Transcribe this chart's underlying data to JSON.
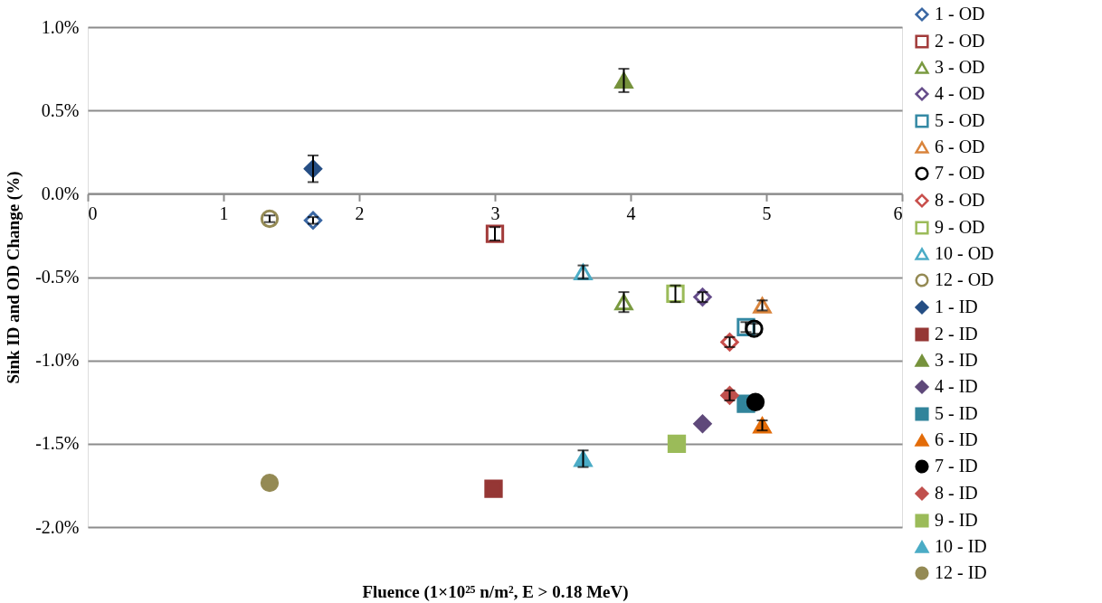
{
  "chart_data": {
    "type": "scatter",
    "xlabel": "Fluence (1×10²⁵ n/m², E > 0.18 MeV)",
    "ylabel": "Sink ID and OD Change (%)",
    "xlim": [
      0,
      6
    ],
    "xticks": [
      0,
      1,
      2,
      3,
      4,
      5,
      6
    ],
    "ylim": [
      -2.0,
      1.0
    ],
    "yticks": [
      {
        "value": -2.0,
        "label": "-2.0%"
      },
      {
        "value": -1.5,
        "label": "-1.5%"
      },
      {
        "value": -1.0,
        "label": "-1.0%"
      },
      {
        "value": -0.5,
        "label": "-0.5%"
      },
      {
        "value": 0.0,
        "label": "0.0%"
      },
      {
        "value": 0.5,
        "label": "0.5%"
      },
      {
        "value": 1.0,
        "label": "1.0%"
      }
    ],
    "grid": "y",
    "legend": "right",
    "series": [
      {
        "name": "1 - OD",
        "color": "#3a67a3",
        "marker": "diamond-open",
        "x": [
          1.66
        ],
        "values": [
          -0.16
        ],
        "errors": [
          0.02
        ]
      },
      {
        "name": "2 - OD",
        "color": "#a23b3a",
        "marker": "square-open",
        "x": [
          3.0
        ],
        "values": [
          -0.24
        ],
        "errors": [
          0.04
        ]
      },
      {
        "name": "3 - OD",
        "color": "#7a9a40",
        "marker": "triangle-open",
        "x": [
          3.95
        ],
        "values": [
          -0.65
        ],
        "errors": [
          0.06
        ]
      },
      {
        "name": "4 - OD",
        "color": "#654c8a",
        "marker": "diamond-open",
        "x": [
          4.53
        ],
        "values": [
          -0.62
        ],
        "errors": [
          0.03
        ]
      },
      {
        "name": "5 - OD",
        "color": "#3489a4",
        "marker": "square-open",
        "x": [
          4.85
        ],
        "values": [
          -0.8
        ],
        "errors": [
          0.03
        ]
      },
      {
        "name": "6 - OD",
        "color": "#d9843c",
        "marker": "triangle-open",
        "x": [
          4.97
        ],
        "values": [
          -0.67
        ],
        "errors": [
          0.03
        ]
      },
      {
        "name": "7 - OD",
        "color": "#000000",
        "marker": "circle-open",
        "x": [
          4.91
        ],
        "values": [
          -0.81
        ],
        "errors": [
          0.03
        ]
      },
      {
        "name": "8 - OD",
        "color": "#c84e4b",
        "marker": "diamond-open",
        "x": [
          4.73
        ],
        "values": [
          -0.89
        ],
        "errors": [
          0.03
        ]
      },
      {
        "name": "9 - OD",
        "color": "#9bbb59",
        "marker": "square-open",
        "x": [
          4.33
        ],
        "values": [
          -0.6
        ],
        "errors": [
          0.05
        ]
      },
      {
        "name": "10 - OD",
        "color": "#4bacc6",
        "marker": "triangle-open",
        "x": [
          3.65
        ],
        "values": [
          -0.47
        ],
        "errors": [
          0.04
        ]
      },
      {
        "name": "12 - OD",
        "color": "#948a54",
        "marker": "circle-open",
        "x": [
          1.34
        ],
        "values": [
          -0.15
        ],
        "errors": [
          0.02
        ]
      },
      {
        "name": "1 - ID",
        "color": "#254e84",
        "marker": "diamond",
        "x": [
          1.66
        ],
        "values": [
          0.15
        ],
        "errors": [
          0.08
        ]
      },
      {
        "name": "2 - ID",
        "color": "#953735",
        "marker": "square",
        "x": [
          2.99
        ],
        "values": [
          -1.77
        ],
        "errors": [
          null
        ]
      },
      {
        "name": "3 - ID",
        "color": "#76923c",
        "marker": "triangle",
        "x": [
          3.95
        ],
        "values": [
          0.68
        ],
        "errors": [
          0.07
        ]
      },
      {
        "name": "4 - ID",
        "color": "#5f497a",
        "marker": "diamond",
        "x": [
          4.53
        ],
        "values": [
          -1.38
        ],
        "errors": [
          null
        ]
      },
      {
        "name": "5 - ID",
        "color": "#31849b",
        "marker": "square",
        "x": [
          4.85
        ],
        "values": [
          -1.26
        ],
        "errors": [
          null
        ]
      },
      {
        "name": "6 - ID",
        "color": "#e36c09",
        "marker": "triangle",
        "x": [
          4.97
        ],
        "values": [
          -1.39
        ],
        "errors": [
          0.03
        ]
      },
      {
        "name": "7 - ID",
        "color": "#000000",
        "marker": "circle",
        "x": [
          4.92
        ],
        "values": [
          -1.25
        ],
        "errors": [
          null
        ]
      },
      {
        "name": "8 - ID",
        "color": "#c0504d",
        "marker": "diamond",
        "x": [
          4.73
        ],
        "values": [
          -1.21
        ],
        "errors": [
          0.03
        ]
      },
      {
        "name": "9 - ID",
        "color": "#9bbb59",
        "marker": "square",
        "x": [
          4.34
        ],
        "values": [
          -1.5
        ],
        "errors": [
          null
        ]
      },
      {
        "name": "10 - ID",
        "color": "#4bacc6",
        "marker": "triangle",
        "x": [
          3.65
        ],
        "values": [
          -1.59
        ],
        "errors": [
          0.05
        ]
      },
      {
        "name": "12 - ID",
        "color": "#948a54",
        "marker": "circle",
        "x": [
          1.34
        ],
        "values": [
          -1.735
        ],
        "errors": [
          null
        ]
      }
    ]
  }
}
